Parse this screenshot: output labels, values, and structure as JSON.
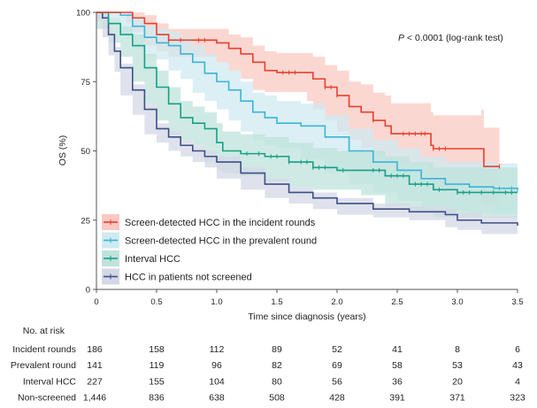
{
  "chart_data": {
    "type": "line",
    "subtype": "kaplan-meier",
    "xlabel": "Time since diagnosis (years)",
    "ylabel": "OS (%)",
    "xlim": [
      0,
      3.5
    ],
    "ylim": [
      0,
      100
    ],
    "xticks": [
      "0",
      "0.5",
      "1.0",
      "1.5",
      "2.0",
      "2.5",
      "3.0",
      "3.5"
    ],
    "yticks": [
      "0",
      "25",
      "50",
      "75",
      "100"
    ],
    "annotation": {
      "italic": "P",
      "text": " < 0.0001 (log-rank test)"
    },
    "legend_position": "bottom-left",
    "series": [
      {
        "name": "Screen-detected HCC in the incident rounds",
        "color": "#e8402f",
        "band": "#f9c9c2",
        "points": [
          [
            0,
            100
          ],
          [
            0.25,
            100
          ],
          [
            0.3,
            98
          ],
          [
            0.4,
            96
          ],
          [
            0.5,
            92
          ],
          [
            0.6,
            90
          ],
          [
            1.0,
            89
          ],
          [
            1.1,
            87
          ],
          [
            1.2,
            85
          ],
          [
            1.3,
            82
          ],
          [
            1.4,
            79
          ],
          [
            1.5,
            78.3
          ],
          [
            1.75,
            78.3
          ],
          [
            1.8,
            76
          ],
          [
            1.9,
            73
          ],
          [
            2.0,
            70
          ],
          [
            2.1,
            66
          ],
          [
            2.2,
            64
          ],
          [
            2.3,
            61
          ],
          [
            2.4,
            59
          ],
          [
            2.45,
            56.2
          ],
          [
            2.76,
            56.2
          ],
          [
            2.78,
            52
          ],
          [
            2.8,
            50.8
          ],
          [
            3.2,
            50.8
          ],
          [
            3.22,
            44.4
          ],
          [
            3.35,
            44.4
          ]
        ],
        "ci_half": [
          0,
          0,
          2,
          3,
          4,
          4,
          5,
          5,
          6,
          6,
          7,
          7,
          7,
          8,
          8,
          9,
          9,
          10,
          10,
          11,
          11,
          11,
          12,
          12,
          14,
          14,
          14
        ],
        "censor": [
          0.6,
          0.7,
          0.85,
          0.9,
          1.55,
          1.6,
          1.65,
          1.9,
          1.95,
          2.0,
          2.3,
          2.55,
          2.6,
          2.65,
          2.7,
          2.73,
          2.8,
          2.85,
          2.9,
          3.35
        ]
      },
      {
        "name": "Screen-detected HCC in the prevalent round",
        "color": "#3bb4d6",
        "band": "#cfeaf1",
        "points": [
          [
            0,
            100
          ],
          [
            0.2,
            99
          ],
          [
            0.3,
            95
          ],
          [
            0.4,
            91
          ],
          [
            0.5,
            89
          ],
          [
            0.6,
            88
          ],
          [
            0.7,
            85
          ],
          [
            0.8,
            82
          ],
          [
            0.9,
            78
          ],
          [
            1.0,
            75
          ],
          [
            1.1,
            72
          ],
          [
            1.2,
            68
          ],
          [
            1.3,
            64
          ],
          [
            1.4,
            62
          ],
          [
            1.5,
            60
          ],
          [
            1.7,
            59
          ],
          [
            1.9,
            55
          ],
          [
            2.1,
            50
          ],
          [
            2.3,
            46
          ],
          [
            2.5,
            43
          ],
          [
            2.7,
            40
          ],
          [
            2.9,
            38
          ],
          [
            3.1,
            37
          ],
          [
            3.3,
            36.5
          ],
          [
            3.5,
            36
          ]
        ],
        "ci_half": [
          0,
          1,
          3,
          4,
          5,
          5,
          6,
          6,
          7,
          7,
          7,
          7,
          7,
          8,
          8,
          8,
          8,
          8,
          8,
          8,
          8,
          8,
          9,
          9,
          9
        ],
        "censor": [
          3.35,
          3.45,
          3.5
        ]
      },
      {
        "name": "Interval HCC",
        "color": "#16a085",
        "band": "#bfe3db",
        "points": [
          [
            0,
            100
          ],
          [
            0.1,
            96
          ],
          [
            0.2,
            92
          ],
          [
            0.3,
            88
          ],
          [
            0.4,
            80
          ],
          [
            0.5,
            73
          ],
          [
            0.6,
            67
          ],
          [
            0.7,
            62
          ],
          [
            0.8,
            60
          ],
          [
            0.9,
            58
          ],
          [
            1.0,
            53
          ],
          [
            1.05,
            50
          ],
          [
            1.2,
            49
          ],
          [
            1.4,
            48
          ],
          [
            1.6,
            46
          ],
          [
            1.8,
            44
          ],
          [
            2.0,
            43
          ],
          [
            2.2,
            43
          ],
          [
            2.4,
            41
          ],
          [
            2.6,
            38
          ],
          [
            2.8,
            36
          ],
          [
            3.0,
            35
          ],
          [
            3.5,
            35
          ]
        ],
        "ci_half": [
          0,
          2,
          3,
          4,
          5,
          6,
          6,
          6,
          6,
          6,
          7,
          7,
          7,
          7,
          7,
          7,
          7,
          7,
          7,
          8,
          8,
          9,
          9
        ],
        "censor": [
          1.25,
          1.35,
          1.45,
          1.5,
          1.6,
          1.7,
          1.75,
          1.8,
          1.85,
          1.9,
          2.05,
          2.3,
          2.35,
          2.45,
          2.5,
          2.55,
          2.65,
          2.7,
          2.75,
          2.85,
          3.0,
          3.05,
          3.1,
          3.2,
          3.3,
          3.4,
          3.45
        ]
      },
      {
        "name": "HCC in patients not screened",
        "color": "#3d4f87",
        "band": "#d4d8e5",
        "points": [
          [
            0,
            100
          ],
          [
            0.05,
            98
          ],
          [
            0.1,
            92
          ],
          [
            0.15,
            86
          ],
          [
            0.2,
            80
          ],
          [
            0.3,
            72
          ],
          [
            0.4,
            65
          ],
          [
            0.5,
            58
          ],
          [
            0.6,
            55
          ],
          [
            0.7,
            52
          ],
          [
            0.8,
            50
          ],
          [
            0.9,
            48
          ],
          [
            1.0,
            46
          ],
          [
            1.2,
            42
          ],
          [
            1.4,
            38
          ],
          [
            1.6,
            35
          ],
          [
            1.8,
            33
          ],
          [
            2.0,
            31
          ],
          [
            2.3,
            29
          ],
          [
            2.6,
            28
          ],
          [
            2.9,
            27
          ],
          [
            3.0,
            25
          ],
          [
            3.2,
            24
          ],
          [
            3.5,
            23
          ]
        ],
        "ci_half": [
          0,
          1,
          1,
          1.5,
          1.5,
          2,
          2,
          2,
          2,
          2,
          2,
          2,
          2,
          2,
          2,
          2,
          2,
          2,
          2,
          2,
          2,
          2.5,
          2.5,
          3
        ],
        "censor": []
      }
    ],
    "risk_table": {
      "title": "No. at risk",
      "rows": [
        {
          "label": "Incident rounds",
          "values": [
            "186",
            "158",
            "112",
            "89",
            "52",
            "41",
            "8",
            "6"
          ]
        },
        {
          "label": "Prevalent round",
          "values": [
            "141",
            "119",
            "96",
            "82",
            "69",
            "58",
            "53",
            "43"
          ]
        },
        {
          "label": "Interval HCC",
          "values": [
            "227",
            "155",
            "104",
            "80",
            "56",
            "36",
            "20",
            "4"
          ]
        },
        {
          "label": "Non-screened",
          "values": [
            "1,446",
            "836",
            "638",
            "508",
            "428",
            "391",
            "371",
            "323"
          ]
        }
      ]
    }
  }
}
